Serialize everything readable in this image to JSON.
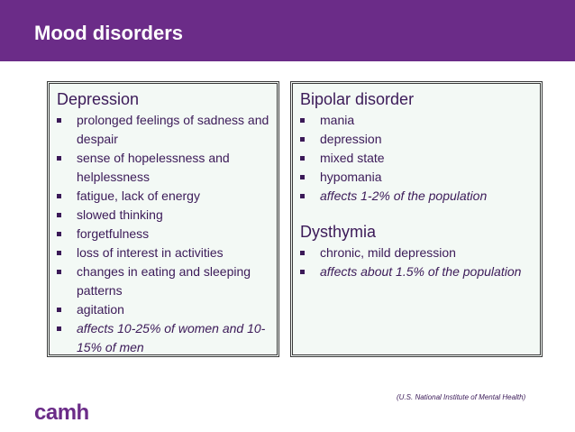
{
  "header": {
    "title": "Mood disorders"
  },
  "boxes": [
    {
      "sections": [
        {
          "heading": "Depression",
          "items": [
            {
              "text": "prolonged feelings of sadness and despair"
            },
            {
              "text": "sense of hopelessness and helplessness"
            },
            {
              "text": "fatigue, lack of energy"
            },
            {
              "text": "slowed thinking"
            },
            {
              "text": "forgetfulness"
            },
            {
              "text": "loss of interest in activities"
            },
            {
              "text": "changes in eating and sleeping patterns"
            },
            {
              "text": "agitation"
            },
            {
              "text": "affects 10-25% of women and 10-15% of men",
              "italic": true
            }
          ]
        }
      ]
    },
    {
      "sections": [
        {
          "heading": "Bipolar disorder",
          "items": [
            {
              "text": "mania"
            },
            {
              "text": "depression"
            },
            {
              "text": "mixed state"
            },
            {
              "text": "hypomania"
            },
            {
              "text": "affects 1-2% of the population",
              "italic": true
            }
          ]
        },
        {
          "heading": "Dysthymia",
          "items": [
            {
              "text": "chronic, mild depression"
            },
            {
              "text": "affects about 1.5% of the population",
              "italic": true
            }
          ]
        }
      ]
    }
  ],
  "citation": "(U.S. National Institute of Mental Health)",
  "logo": "camh"
}
